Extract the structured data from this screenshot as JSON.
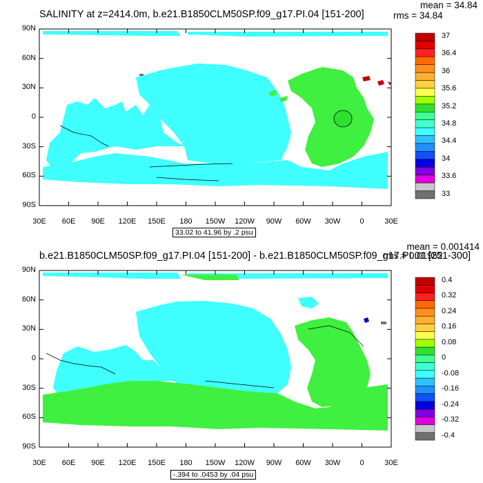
{
  "panels": [
    {
      "title": "SALINITY at z=2414.0m, b.e21.B1850CLM50SP.f09_g17.PI.04 [151-200]",
      "mean": "mean = 34.84",
      "rms": "rms = 34.84",
      "contour_info": "33.02 to 41.96 by .2 psu",
      "colorbar_labels": [
        "37",
        "36.4",
        "36",
        "35.6",
        "35.2",
        "34.8",
        "34.4",
        "34",
        "33.6",
        "33"
      ]
    },
    {
      "title": "b.e21.B1850CLM50SP.f09_g17.PI.04 [151-200] - b.e21.B1850CLM50SP.f09_g17.PI.01 [251-300]",
      "mean": "mean = 0.001414",
      "rms": "rms = 0.01952",
      "contour_info": "-.394 to .0453 by .04 psu",
      "colorbar_labels": [
        "0.4",
        "0.32",
        "0.24",
        "0.16",
        "0.08",
        "0",
        "-0.08",
        "-0.16",
        "-0.24",
        "-0.32",
        "-0.4"
      ]
    }
  ],
  "axes": {
    "lat_labels": [
      "90N",
      "60N",
      "30N",
      "0",
      "30S",
      "60S",
      "90S"
    ],
    "lon_labels": [
      "30E",
      "60E",
      "90E",
      "120E",
      "150E",
      "180",
      "150W",
      "120W",
      "90W",
      "60W",
      "30W",
      "0",
      "30E"
    ]
  },
  "colors": {
    "cb1": [
      "#c00000",
      "#e00000",
      "#ff2020",
      "#ff6a00",
      "#ff9020",
      "#ffb030",
      "#ffd040",
      "#ffff50",
      "#a0ff00",
      "#30e030",
      "#40ff90",
      "#40ffd0",
      "#40ffff",
      "#30c0ff",
      "#2090ff",
      "#1050ff",
      "#0000e0",
      "#8000e0",
      "#e000e0",
      "#c8c8c8",
      "#707070"
    ],
    "cb2": [
      "#c00000",
      "#e00000",
      "#ff2020",
      "#ff6a00",
      "#ff9020",
      "#ffb030",
      "#ffd040",
      "#ffff50",
      "#a0ff00",
      "#30e030",
      "#40ff90",
      "#40ffd0",
      "#40ffff",
      "#30c0ff",
      "#2090ff",
      "#1050ff",
      "#0000e0",
      "#8000e0",
      "#e000e0",
      "#c8c8c8",
      "#707070"
    ],
    "cyan": "#40ffff",
    "green": "#40f040",
    "teal": "#40ffd0"
  }
}
